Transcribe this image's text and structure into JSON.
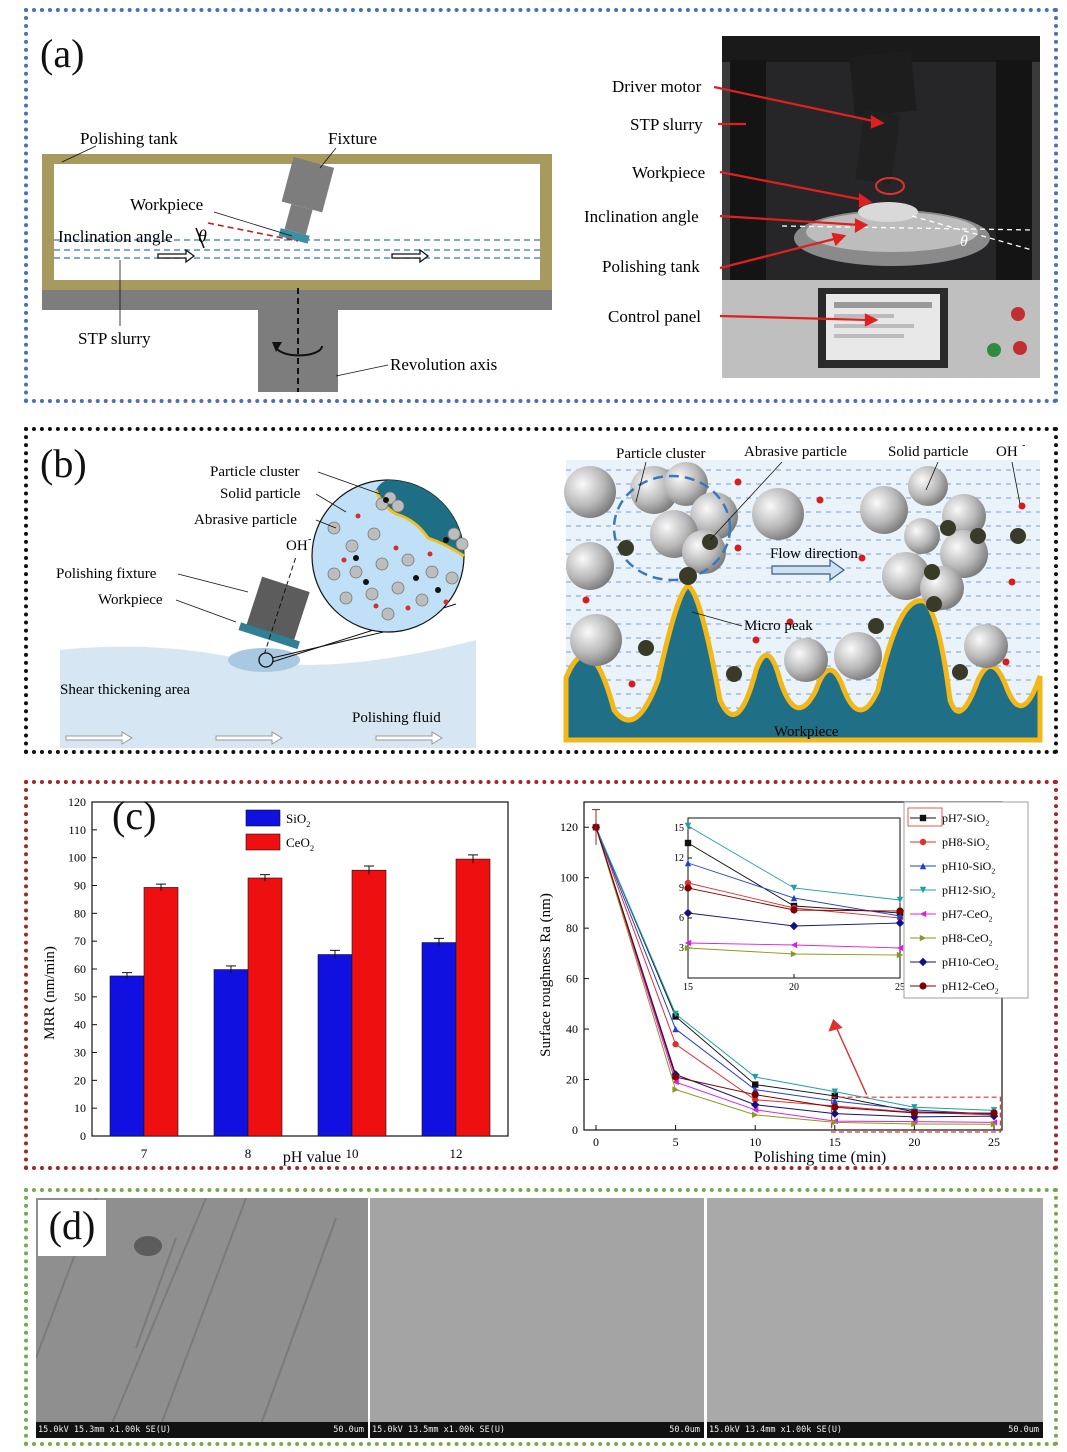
{
  "panels": {
    "a": {
      "letter": "(a)",
      "schematic": {
        "polishing_tank": "Polishing  tank",
        "fixture": "Fixture",
        "workpiece": "Workpiece",
        "inclination_angle": "Inclination angle",
        "theta": "θ",
        "stp_slurry": "STP slurry",
        "revolution_axis": "Revolution axis"
      },
      "photo_labels": [
        "Driver motor",
        "STP slurry",
        "Workpiece",
        "Inclination angle",
        "Polishing tank",
        "Control panel"
      ]
    },
    "b": {
      "letter": "(b)",
      "left": {
        "particle_cluster": "Particle cluster",
        "solid_particle": "Solid particle",
        "abrasive_particle": "Abrasive particle",
        "oh": "OH",
        "oh_sup": "-",
        "polishing_fixture": "Polishing fixture",
        "workpiece": "Workpiece",
        "shear_thickening": "Shear thickening area",
        "polishing_fluid": "Polishing fluid"
      },
      "right": {
        "particle_cluster": "Particle cluster",
        "abrasive_particle": "Abrasive particle",
        "solid_particle": "Solid particle",
        "oh": "OH",
        "oh_sup": "-",
        "flow_direction": "Flow direction",
        "micro_peak": "Micro peak",
        "workpiece": "Workpiece"
      }
    },
    "c": {
      "letter": "(c)"
    },
    "d": {
      "letter": "(d)",
      "sem_images": [
        {
          "info": "15.0kV 15.3mm x1.00k SE(U)",
          "scale": "50.0um",
          "tone": "#8f8f8f"
        },
        {
          "info": "15.0kV 13.5mm x1.00k SE(U)",
          "scale": "50.0um",
          "tone": "#a4a4a4"
        },
        {
          "info": "15.0kV 13.4mm x1.00k SE(U)",
          "scale": "50.0um",
          "tone": "#a9a9a9"
        }
      ]
    }
  },
  "chart_data": [
    {
      "type": "bar",
      "ylabel": "MRR (nm/min)",
      "xlabel": "pH value",
      "categories": [
        "7",
        "8",
        "10",
        "12"
      ],
      "ylim": [
        0,
        120
      ],
      "yticks": [
        0,
        10,
        20,
        30,
        40,
        50,
        60,
        70,
        80,
        90,
        100,
        110,
        120
      ],
      "series": [
        {
          "name": "SiO",
          "sub": "2",
          "color": "#1010e0",
          "values": [
            57.5,
            59.8,
            65.2,
            69.5
          ],
          "err": [
            1.2,
            1.3,
            1.5,
            1.5
          ]
        },
        {
          "name": "CeO",
          "sub": "2",
          "color": "#ee1010",
          "values": [
            89.3,
            92.7,
            95.5,
            99.5
          ],
          "err": [
            1.2,
            1.2,
            1.5,
            1.5
          ]
        }
      ]
    },
    {
      "type": "line",
      "ylabel": "Surface roughness Ra (nm)",
      "xlabel": "Polishing time (min)",
      "x": [
        0,
        5,
        10,
        15,
        20,
        25
      ],
      "xlim": [
        0,
        25
      ],
      "ylim": [
        0,
        130
      ],
      "yticks": [
        0,
        20,
        40,
        60,
        80,
        100,
        120
      ],
      "series": [
        {
          "name": "pH7-SiO",
          "sub": "2",
          "color": "#111111",
          "marker": "square",
          "values": [
            120,
            45,
            18,
            13.5,
            7.2,
            6.5
          ]
        },
        {
          "name": "pH8-SiO",
          "sub": "2",
          "color": "#e03030",
          "marker": "circle",
          "values": [
            120,
            34,
            12,
            9.5,
            7.0,
            6.0
          ]
        },
        {
          "name": "pH10-SiO",
          "sub": "2",
          "color": "#2040d0",
          "marker": "triangle",
          "values": [
            120,
            40,
            16,
            11.5,
            8.0,
            6.2
          ]
        },
        {
          "name": "pH12-SiO",
          "sub": "2",
          "color": "#20a0a0",
          "marker": "tri-down",
          "values": [
            120,
            46,
            21,
            15.2,
            9.0,
            7.8
          ]
        },
        {
          "name": "pH7-CeO",
          "sub": "2",
          "color": "#e020e0",
          "marker": "tri-left",
          "values": [
            120,
            19,
            8,
            3.5,
            3.3,
            3.0
          ]
        },
        {
          "name": "pH8-CeO",
          "sub": "2",
          "color": "#8a9a1a",
          "marker": "tri-right",
          "values": [
            120,
            16,
            6,
            3.0,
            2.4,
            2.3
          ]
        },
        {
          "name": "pH10-CeO",
          "sub": "2",
          "color": "#101080",
          "marker": "diamond",
          "values": [
            120,
            22,
            10,
            6.5,
            5.2,
            5.5
          ]
        },
        {
          "name": "pH12-CeO",
          "sub": "2",
          "color": "#800000",
          "marker": "hexagon",
          "values": [
            120,
            21,
            14,
            9.0,
            6.8,
            6.7
          ]
        }
      ],
      "inset": {
        "xlim": [
          15,
          25
        ],
        "ylim": [
          0,
          16
        ],
        "xticks": [
          15,
          20,
          25
        ],
        "yticks": [
          3,
          6,
          9,
          12,
          15
        ]
      }
    }
  ]
}
